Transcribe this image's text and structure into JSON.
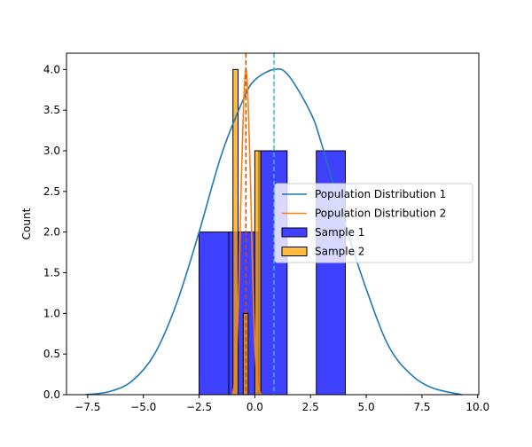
{
  "chart_data": {
    "type": "histogram",
    "title": "",
    "xlabel": "",
    "ylabel": "Count",
    "xlim": [
      -8.45,
      10.05
    ],
    "ylim": [
      0,
      4.2
    ],
    "xticks": [
      -7.5,
      -5.0,
      -2.5,
      0.0,
      2.5,
      5.0,
      7.5,
      10.0
    ],
    "xtick_labels": [
      "−7.5",
      "−5.0",
      "−2.5",
      "0.0",
      "2.5",
      "5.0",
      "7.5",
      "10.0"
    ],
    "yticks": [
      0,
      0.5,
      1.0,
      1.5,
      2.0,
      2.5,
      3.0,
      3.5,
      4.0
    ],
    "ytick_labels": [
      "0.0",
      "0.5",
      "1.0",
      "1.5",
      "2.0",
      "2.5",
      "3.0",
      "3.5",
      "4.0"
    ],
    "grid": false,
    "legend_position": "center-right",
    "series": [
      {
        "name": "Sample 1",
        "kind": "bars",
        "color": "#0000ff",
        "opacity": 0.75,
        "bins": [
          {
            "x0": -2.5,
            "x1": -1.17,
            "count": 2
          },
          {
            "x0": -1.17,
            "x1": 0.17,
            "count": 2
          },
          {
            "x0": 0.17,
            "x1": 1.45,
            "count": 3
          },
          {
            "x0": 1.45,
            "x1": 2.76,
            "count": 0
          },
          {
            "x0": 2.76,
            "x1": 4.06,
            "count": 3
          }
        ]
      },
      {
        "name": "Sample 2",
        "kind": "bars",
        "color": "#ffa500",
        "opacity": 0.75,
        "bins": [
          {
            "x0": -0.98,
            "x1": -0.75,
            "count": 4
          },
          {
            "x0": -0.75,
            "x1": -0.52,
            "count": 0
          },
          {
            "x0": -0.52,
            "x1": -0.3,
            "count": 1
          },
          {
            "x0": -0.3,
            "x1": 0.0,
            "count": 0
          },
          {
            "x0": 0.0,
            "x1": 0.27,
            "count": 3
          }
        ]
      },
      {
        "name": "Population Distribution 1",
        "kind": "curve",
        "color": "#1f77b4",
        "points": [
          [
            -7.6,
            0.0
          ],
          [
            -6.5,
            0.04
          ],
          [
            -5.5,
            0.17
          ],
          [
            -4.5,
            0.5
          ],
          [
            -3.5,
            1.13
          ],
          [
            -2.5,
            2.0
          ],
          [
            -1.5,
            2.95
          ],
          [
            -0.5,
            3.64
          ],
          [
            0.0,
            3.87
          ],
          [
            0.86,
            4.0
          ],
          [
            1.5,
            3.93
          ],
          [
            2.5,
            3.47
          ],
          [
            3.0,
            3.08
          ],
          [
            4.0,
            2.14
          ],
          [
            5.0,
            1.3
          ],
          [
            6.0,
            0.6
          ],
          [
            7.0,
            0.25
          ],
          [
            8.0,
            0.08
          ],
          [
            9.3,
            0.0
          ]
        ]
      },
      {
        "name": "Population Distribution 2",
        "kind": "curve",
        "color": "#ff7f0e",
        "points": [
          [
            -1.0,
            0.0
          ],
          [
            -0.9,
            0.17
          ],
          [
            -0.8,
            0.6
          ],
          [
            -0.7,
            1.5
          ],
          [
            -0.6,
            2.7
          ],
          [
            -0.5,
            3.6
          ],
          [
            -0.4,
            4.0
          ],
          [
            -0.3,
            3.6
          ],
          [
            -0.2,
            2.7
          ],
          [
            -0.1,
            1.5
          ],
          [
            0.0,
            0.6
          ],
          [
            0.1,
            0.17
          ],
          [
            0.2,
            0.05
          ],
          [
            0.3,
            0.0
          ]
        ]
      }
    ],
    "reference_lines": [
      {
        "x": 0.86,
        "color": "#3fb0ea",
        "style": "dashed"
      },
      {
        "x": -0.4,
        "color": "#cc4b00",
        "style": "dashed"
      }
    ],
    "legend": [
      {
        "label": "Population Distribution 1",
        "swatch": "line",
        "color": "#1f77b4"
      },
      {
        "label": "Population Distribution 2",
        "swatch": "line",
        "color": "#ff7f0e"
      },
      {
        "label": "Sample 1",
        "swatch": "patch",
        "color": "#4040ff"
      },
      {
        "label": "Sample 2",
        "swatch": "patch",
        "color": "#ffbb40"
      }
    ]
  }
}
